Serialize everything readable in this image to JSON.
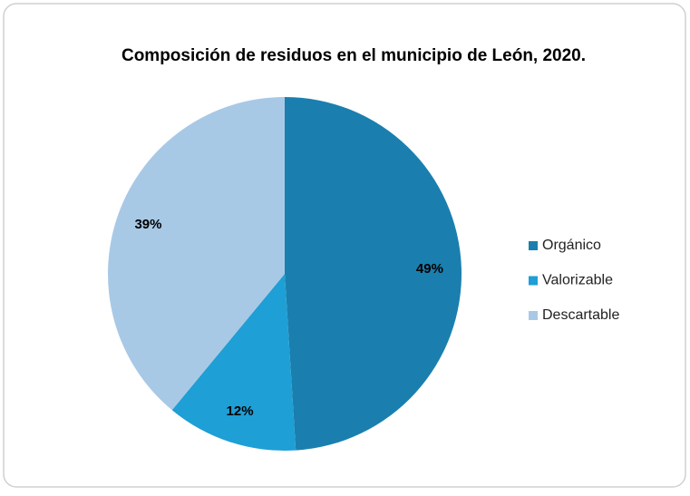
{
  "chart_data": {
    "type": "pie",
    "title": "Composición de residuos en el municipio de León, 2020.",
    "categories": [
      "Orgánico",
      "Valorizable",
      "Descartable"
    ],
    "values": [
      49,
      12,
      39
    ],
    "value_labels": [
      "49%",
      "12%",
      "39%"
    ],
    "colors": [
      "#1a7fae",
      "#1e9fd6",
      "#a8c9e6"
    ],
    "legend": "right"
  }
}
